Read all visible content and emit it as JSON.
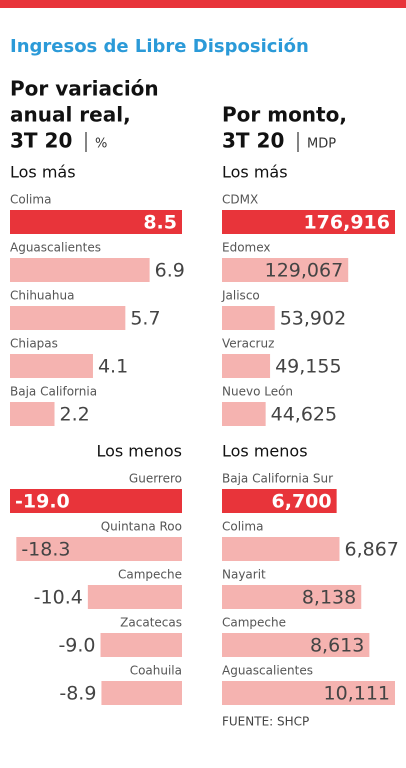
{
  "title": "Ingresos de Libre Disposición",
  "columns": [
    {
      "heading": [
        "Por variación",
        "anual real,"
      ],
      "period": "3T 20",
      "unit": "%"
    },
    {
      "heading": [
        "Por monto,"
      ],
      "period": "3T 20",
      "unit": "MDP"
    }
  ],
  "source": "FUENTE: SHCP",
  "chart_data": [
    {
      "type": "bar",
      "orientation": "horizontal",
      "title": "Los más",
      "categories": [
        "Colima",
        "Aguascalientes",
        "Chihuahua",
        "Chiapas",
        "Baja California"
      ],
      "values": [
        8.5,
        6.9,
        5.7,
        4.1,
        2.2
      ],
      "xlim": [
        0,
        8.5
      ],
      "color": "#f5b3b0",
      "highlight_color": "#e8343a"
    },
    {
      "type": "bar",
      "orientation": "horizontal",
      "title": "Los más",
      "categories": [
        "CDMX",
        "Edomex",
        "Jalisco",
        "Veracruz",
        "Nuevo León"
      ],
      "values": [
        176916,
        129067,
        53902,
        49155,
        44625
      ],
      "value_labels": [
        "176,916",
        "129,067",
        "53,902",
        "49,155",
        "44,625"
      ],
      "xlim": [
        0,
        176916
      ],
      "color": "#f5b3b0",
      "highlight_color": "#e8343a"
    },
    {
      "type": "bar",
      "orientation": "horizontal",
      "title": "Los menos",
      "categories": [
        "Guerrero",
        "Quintana Roo",
        "Campeche",
        "Zacatecas",
        "Coahuila"
      ],
      "values": [
        -19.0,
        -18.3,
        -10.4,
        -9.0,
        -8.9
      ],
      "value_labels": [
        "-19.0",
        "-18.3",
        "-10.4",
        "-9.0",
        "-8.9"
      ],
      "xlim": [
        -19.0,
        0
      ],
      "color": "#f5b3b0",
      "highlight_color": "#e8343a"
    },
    {
      "type": "bar",
      "orientation": "horizontal",
      "title": "Los menos",
      "categories": [
        "Baja California Sur",
        "Colima",
        "Nayarit",
        "Campeche",
        "Aguascalientes"
      ],
      "values": [
        6700,
        6867,
        8138,
        8613,
        10111
      ],
      "value_labels": [
        "6,700",
        "6,867",
        "8,138",
        "8,613",
        "10,111"
      ],
      "xlim": [
        0,
        10111
      ],
      "color": "#f5b3b0",
      "highlight_color": "#e8343a"
    }
  ]
}
